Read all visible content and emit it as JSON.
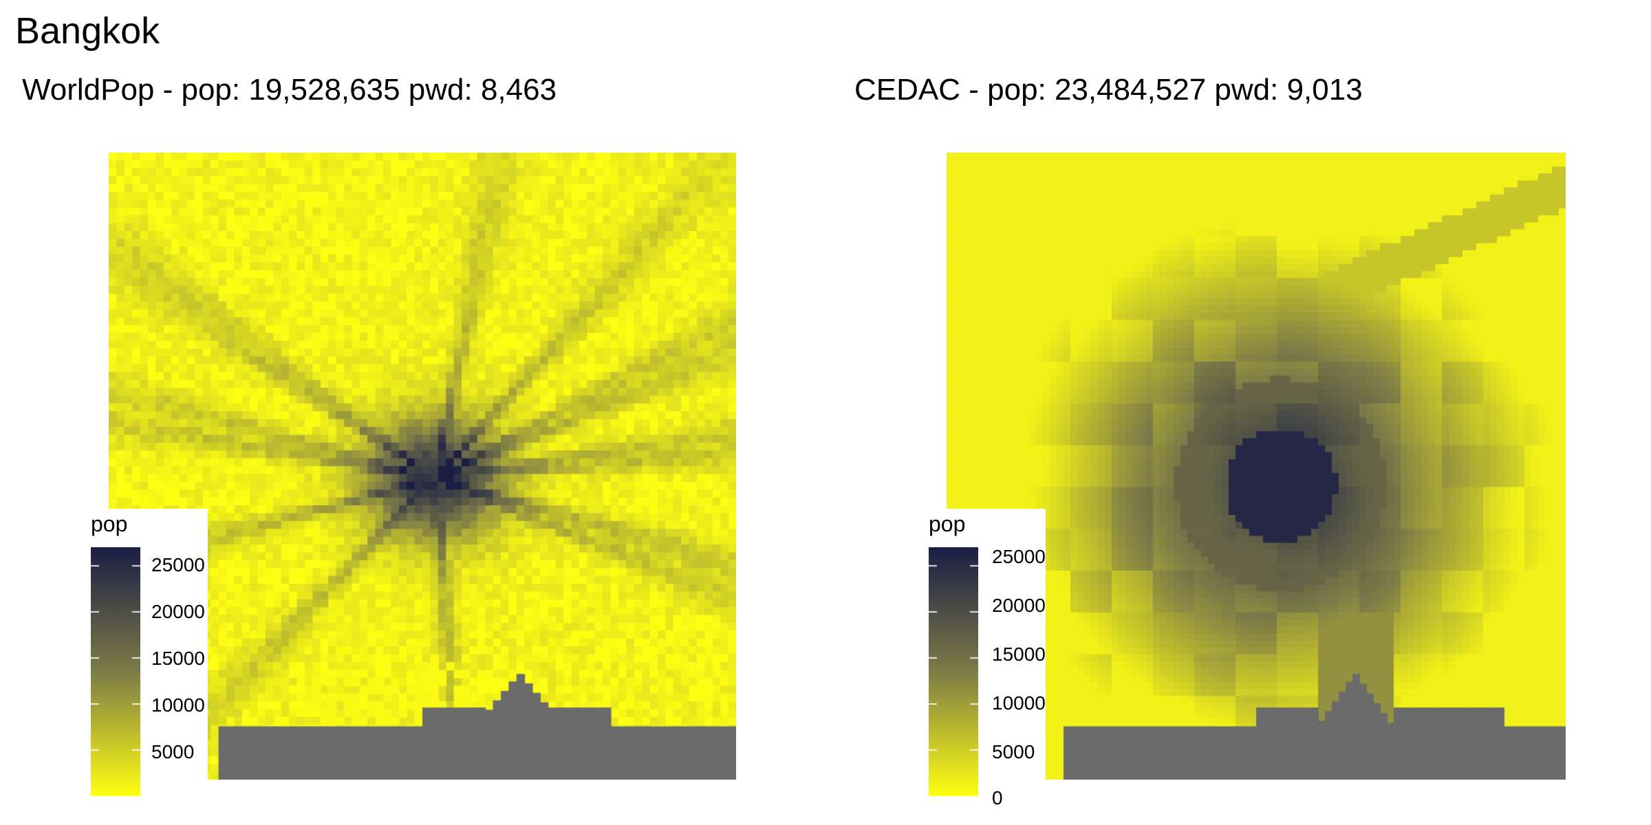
{
  "title": "Bangkok",
  "colors": {
    "low": "#ffff13",
    "mid": "#7e7c47",
    "high": "#1a1e45",
    "water": "#6b6b6b",
    "background": "#ffffff"
  },
  "panels": [
    {
      "id": "worldpop",
      "subtitle": "WorldPop - pop: 19,528,635 pwd: 8,463",
      "texture": "rays",
      "legend": {
        "title": "pop",
        "min": 0,
        "max": 27000,
        "ticks": [
          "25000",
          "20000",
          "15000",
          "10000",
          "5000"
        ]
      }
    },
    {
      "id": "cedac",
      "subtitle": "CEDAC - pop: 23,484,527 pwd: 9,013",
      "texture": "blocks",
      "legend": {
        "title": "pop",
        "min": 0,
        "max": 26500,
        "ticks": [
          "25000",
          "20000",
          "15000",
          "10000",
          "5000",
          "0"
        ]
      }
    }
  ]
}
